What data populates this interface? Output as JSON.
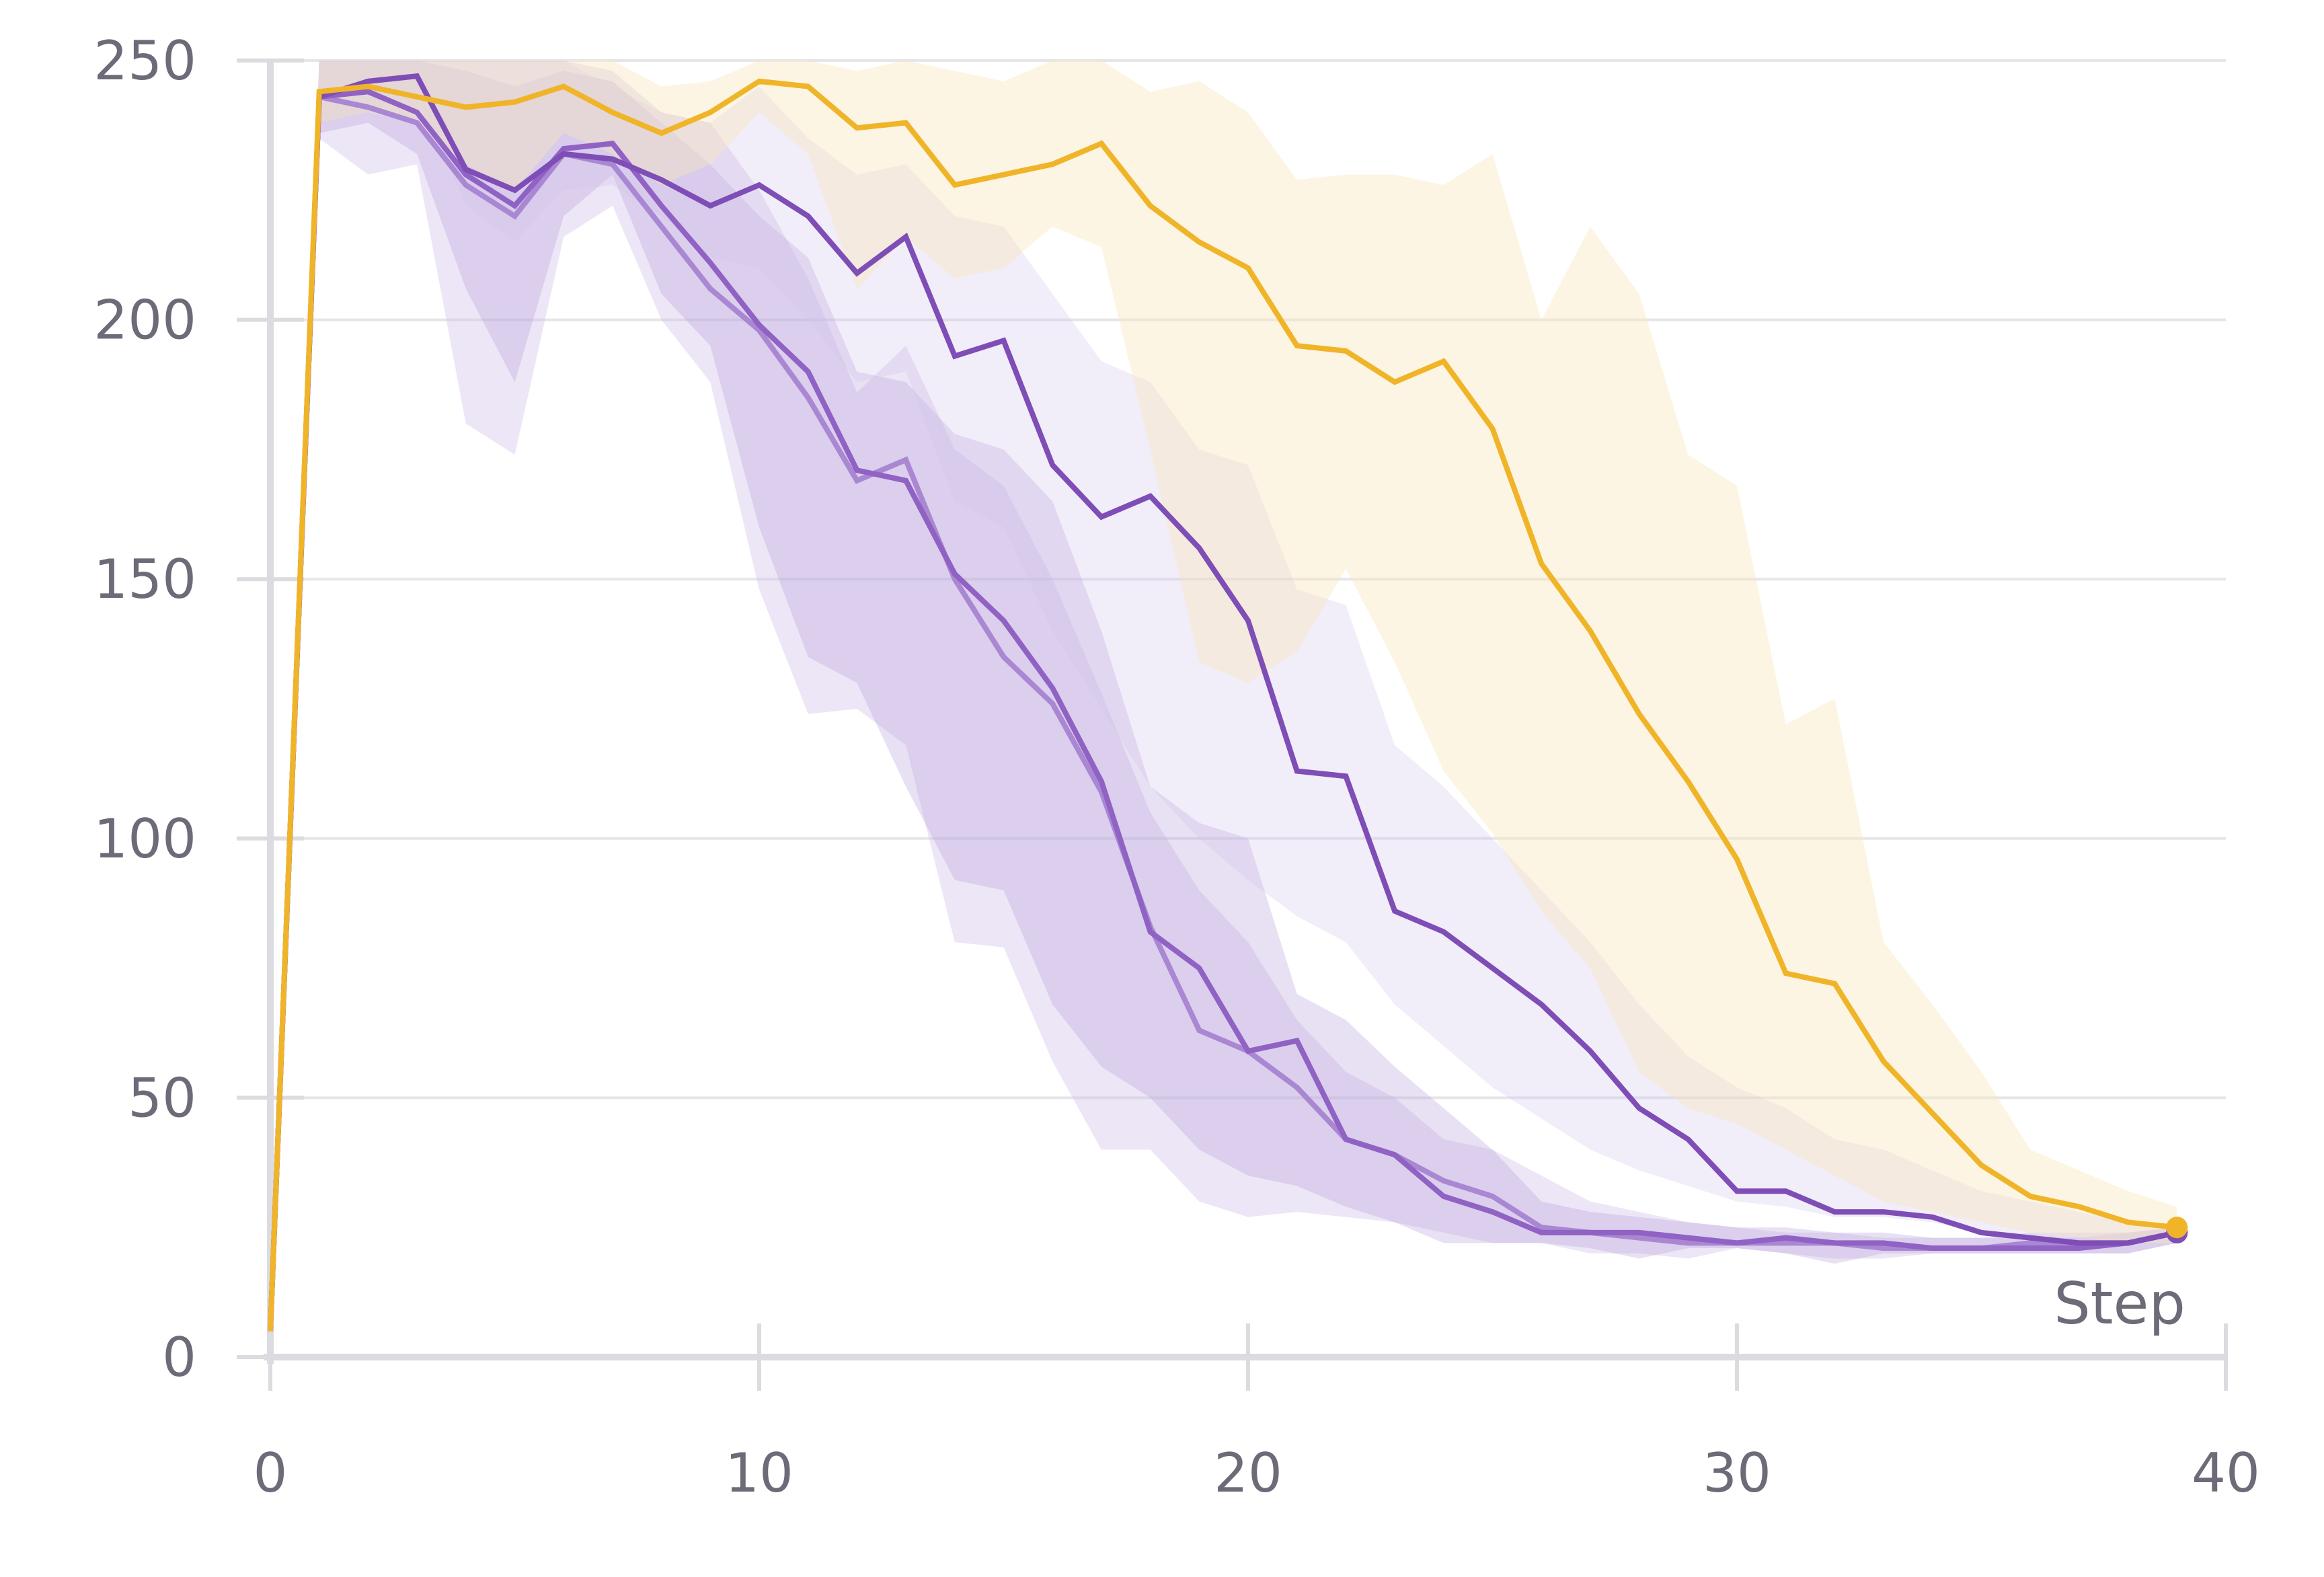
{
  "chart_data": {
    "type": "line",
    "xlabel": "Step",
    "ylabel": "",
    "xlim": [
      0,
      40
    ],
    "ylim": [
      0,
      250
    ],
    "x_ticks": [
      0,
      10,
      20,
      30,
      40
    ],
    "y_ticks": [
      0,
      50,
      100,
      150,
      200,
      250
    ],
    "grid": "horizontal",
    "legend": "none",
    "colors": {
      "gold": "#f0b429",
      "purple_dark": "#7e4db5",
      "purple_mid": "#9062c4",
      "purple_light": "#a987d2",
      "grid": "#e6e6ea",
      "axis": "#dcdce0",
      "text": "#6f6a78"
    },
    "x": [
      0,
      1,
      2,
      3,
      4,
      5,
      6,
      7,
      8,
      9,
      10,
      11,
      12,
      13,
      14,
      15,
      16,
      17,
      18,
      19,
      20,
      21,
      22,
      23,
      24,
      25,
      26,
      27,
      28,
      29,
      30,
      31,
      32,
      33,
      34,
      35,
      36,
      37,
      38,
      39
    ],
    "series": [
      {
        "color_key": "purple_light",
        "values": [
          5,
          243,
          241,
          238,
          226,
          220,
          232,
          230,
          218,
          206,
          198,
          185,
          169,
          173,
          150,
          135,
          126,
          109,
          83,
          63,
          59,
          52,
          42,
          39,
          34,
          31,
          25,
          24,
          23,
          22,
          22,
          22,
          22,
          21,
          21,
          21,
          22,
          22,
          22,
          24
        ],
        "band_low": [
          5,
          235,
          228,
          230,
          180,
          174,
          216,
          222,
          200,
          188,
          148,
          124,
          125,
          118,
          80,
          79,
          57,
          40,
          40,
          30,
          27,
          28,
          27,
          26,
          24,
          22,
          22,
          20,
          20,
          19,
          21,
          20,
          19,
          19,
          20,
          20,
          20,
          20,
          20,
          22
        ],
        "band_high": [
          5,
          250,
          250,
          250,
          250,
          250,
          250,
          248,
          240,
          238,
          225,
          208,
          186,
          195,
          175,
          168,
          150,
          128,
          105,
          90,
          80,
          65,
          55,
          50,
          42,
          40,
          35,
          30,
          28,
          26,
          25,
          24,
          24,
          23,
          23,
          23,
          24,
          24,
          24,
          25
        ]
      },
      {
        "color_key": "purple_mid",
        "values": [
          5,
          243,
          244,
          240,
          228,
          222,
          233,
          234,
          222,
          211,
          199,
          190,
          171,
          169,
          151,
          142,
          129,
          111,
          82,
          75,
          59,
          61,
          42,
          39,
          31,
          28,
          24,
          24,
          24,
          23,
          22,
          23,
          22,
          22,
          21,
          21,
          21,
          21,
          22,
          24
        ],
        "band_low": [
          5,
          236,
          238,
          232,
          206,
          188,
          220,
          228,
          205,
          195,
          160,
          135,
          130,
          110,
          92,
          90,
          68,
          56,
          50,
          40,
          35,
          33,
          29,
          26,
          22,
          22,
          22,
          21,
          19,
          21,
          21,
          20,
          18,
          20,
          20,
          20,
          20,
          20,
          20,
          22
        ],
        "band_high": [
          5,
          250,
          250,
          250,
          248,
          245,
          248,
          246,
          238,
          230,
          220,
          212,
          190,
          188,
          178,
          175,
          165,
          140,
          110,
          103,
          100,
          70,
          65,
          56,
          48,
          40,
          30,
          28,
          27,
          26,
          25,
          25,
          24,
          24,
          23,
          23,
          23,
          23,
          24,
          25
        ]
      },
      {
        "color_key": "purple_dark",
        "values": [
          5,
          243,
          246,
          247,
          229,
          225,
          232,
          231,
          227,
          222,
          226,
          220,
          209,
          216,
          193,
          196,
          172,
          162,
          166,
          156,
          142,
          113,
          112,
          86,
          82,
          75,
          68,
          59,
          48,
          42,
          32,
          32,
          28,
          28,
          27,
          24,
          23,
          22,
          22,
          24
        ],
        "band_low": [
          5,
          238,
          240,
          244,
          222,
          215,
          225,
          226,
          220,
          212,
          210,
          200,
          188,
          190,
          165,
          160,
          140,
          125,
          110,
          100,
          92,
          85,
          80,
          68,
          60,
          52,
          46,
          40,
          36,
          33,
          30,
          29,
          27,
          27,
          26,
          24,
          23,
          22,
          22,
          23
        ],
        "band_high": [
          5,
          250,
          250,
          250,
          250,
          250,
          250,
          245,
          240,
          238,
          245,
          235,
          228,
          230,
          220,
          218,
          205,
          192,
          188,
          175,
          172,
          148,
          145,
          118,
          110,
          100,
          90,
          80,
          68,
          58,
          52,
          48,
          42,
          40,
          36,
          32,
          30,
          28,
          26,
          25
        ]
      },
      {
        "color_key": "gold",
        "values": [
          5,
          244,
          245,
          243,
          241,
          242,
          245,
          240,
          236,
          240,
          246,
          245,
          237,
          238,
          226,
          228,
          230,
          234,
          222,
          215,
          210,
          195,
          194,
          188,
          192,
          179,
          153,
          140,
          124,
          111,
          96,
          74,
          72,
          57,
          47,
          37,
          31,
          29,
          26,
          25
        ],
        "band_low": [
          5,
          238,
          240,
          238,
          230,
          225,
          236,
          232,
          226,
          230,
          240,
          232,
          206,
          216,
          208,
          210,
          218,
          214,
          175,
          134,
          130,
          136,
          152,
          134,
          113,
          101,
          86,
          75,
          55,
          48,
          45,
          40,
          35,
          30,
          28,
          26,
          24,
          23,
          22,
          22
        ],
        "band_high": [
          5,
          250,
          250,
          250,
          250,
          250,
          250,
          250,
          245,
          246,
          250,
          250,
          248,
          250,
          248,
          246,
          250,
          250,
          244,
          246,
          240,
          227,
          228,
          228,
          226,
          232,
          200,
          218,
          205,
          174,
          168,
          122,
          127,
          80,
          68,
          55,
          40,
          36,
          32,
          29
        ]
      }
    ]
  }
}
